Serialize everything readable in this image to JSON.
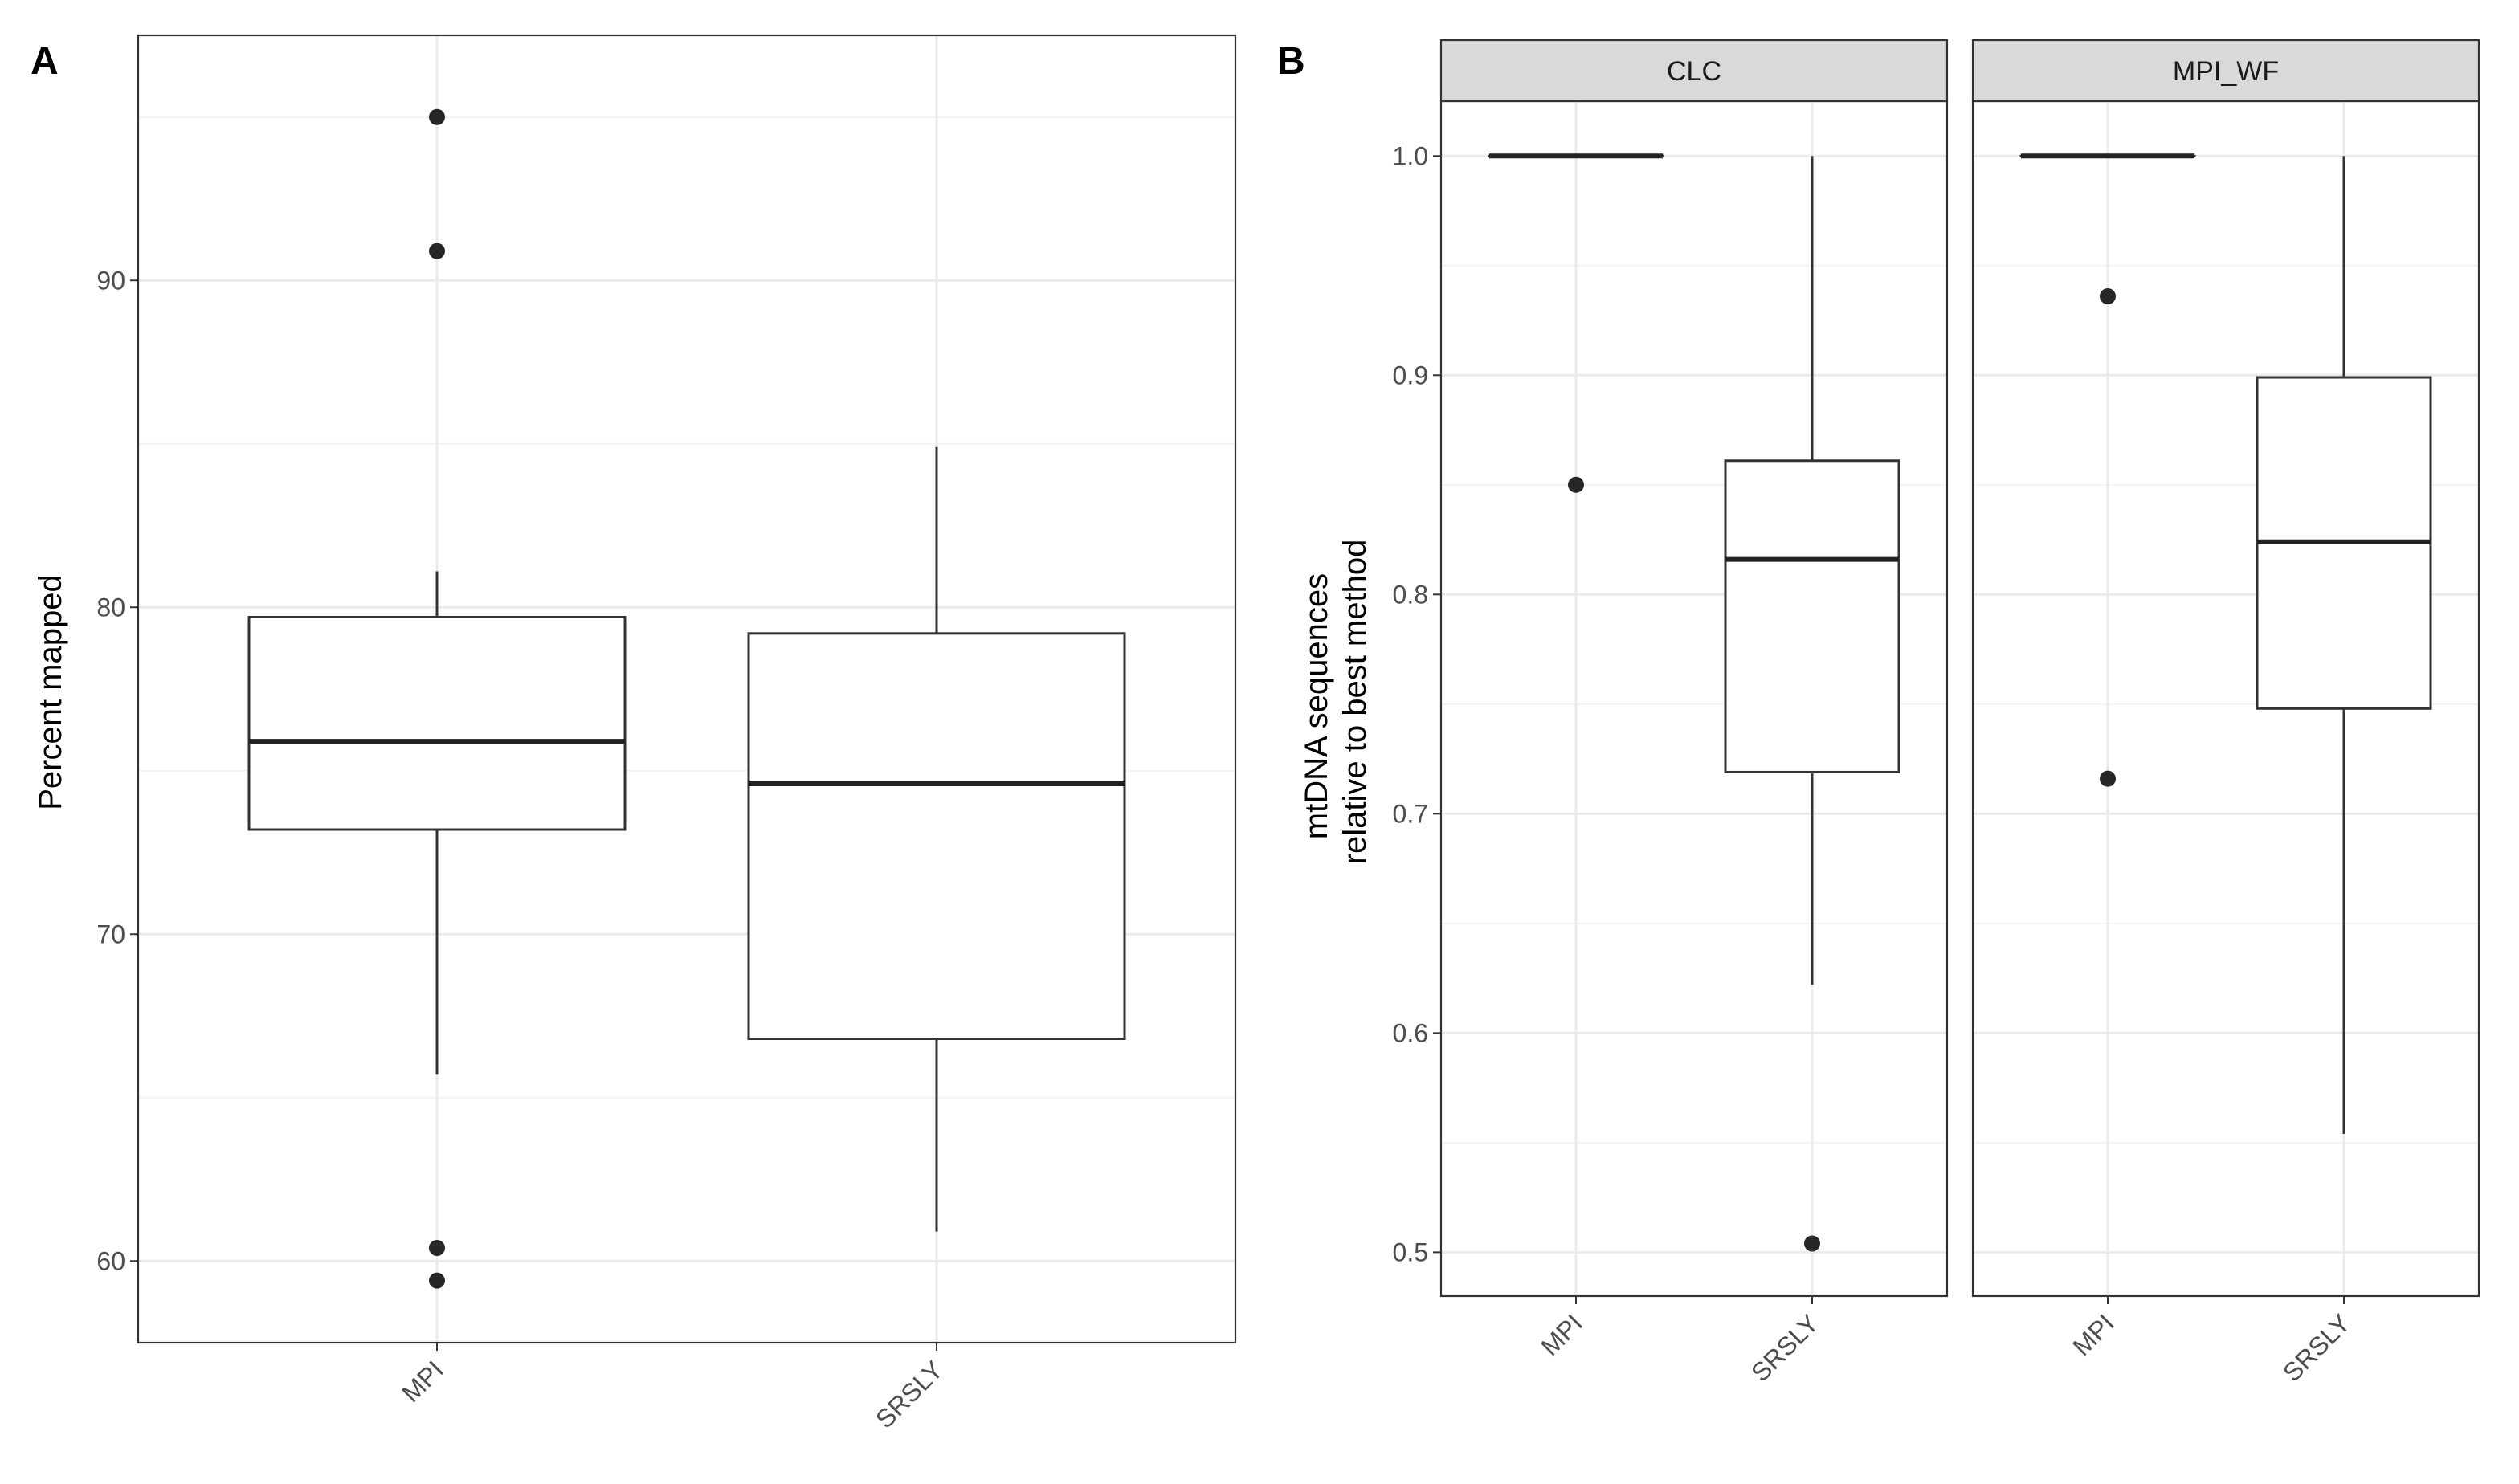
{
  "chart_data": [
    {
      "panel_label": "A",
      "type": "boxplot",
      "ylabel": "Percent mapped",
      "xlabel": "",
      "categories": [
        "MPI",
        "SRSLY"
      ],
      "ylim": [
        57.5,
        97.5
      ],
      "yticks": [
        60,
        70,
        80,
        90
      ],
      "grid": true,
      "boxes": [
        {
          "category": "MPI",
          "lower_whisker": 65.7,
          "q1": 73.2,
          "median": 75.9,
          "q3": 79.7,
          "upper_whisker": 81.1,
          "outliers": [
            95.0,
            90.9,
            60.4,
            59.4
          ]
        },
        {
          "category": "SRSLY",
          "lower_whisker": 60.9,
          "q1": 66.8,
          "median": 74.6,
          "q3": 79.2,
          "upper_whisker": 84.9,
          "outliers": []
        }
      ]
    },
    {
      "panel_label": "B",
      "type": "boxplot",
      "ylabel": "mtDNA sequences\nrelative to best method",
      "ylabel_lines": [
        "mtDNA sequences",
        "relative to best method"
      ],
      "xlabel": "",
      "categories": [
        "MPI",
        "SRSLY"
      ],
      "ylim": [
        0.48,
        1.025
      ],
      "yticks": [
        "0.5",
        "0.6",
        "0.7",
        "0.8",
        "0.9",
        "1.0"
      ],
      "grid": true,
      "facets": [
        {
          "strip": "CLC",
          "boxes": [
            {
              "category": "MPI",
              "lower_whisker": 1.0,
              "q1": 1.0,
              "median": 1.0,
              "q3": 1.0,
              "upper_whisker": 1.0,
              "outliers": [
                0.85
              ]
            },
            {
              "category": "SRSLY",
              "lower_whisker": 0.622,
              "q1": 0.719,
              "median": 0.816,
              "q3": 0.861,
              "upper_whisker": 1.0,
              "outliers": [
                0.504
              ]
            }
          ]
        },
        {
          "strip": "MPI_WF",
          "boxes": [
            {
              "category": "MPI",
              "lower_whisker": 1.0,
              "q1": 1.0,
              "median": 1.0,
              "q3": 1.0,
              "upper_whisker": 1.0,
              "outliers": [
                0.936,
                0.716
              ]
            },
            {
              "category": "SRSLY",
              "lower_whisker": 0.554,
              "q1": 0.748,
              "median": 0.824,
              "q3": 0.899,
              "upper_whisker": 1.0,
              "outliers": []
            }
          ]
        }
      ]
    }
  ]
}
